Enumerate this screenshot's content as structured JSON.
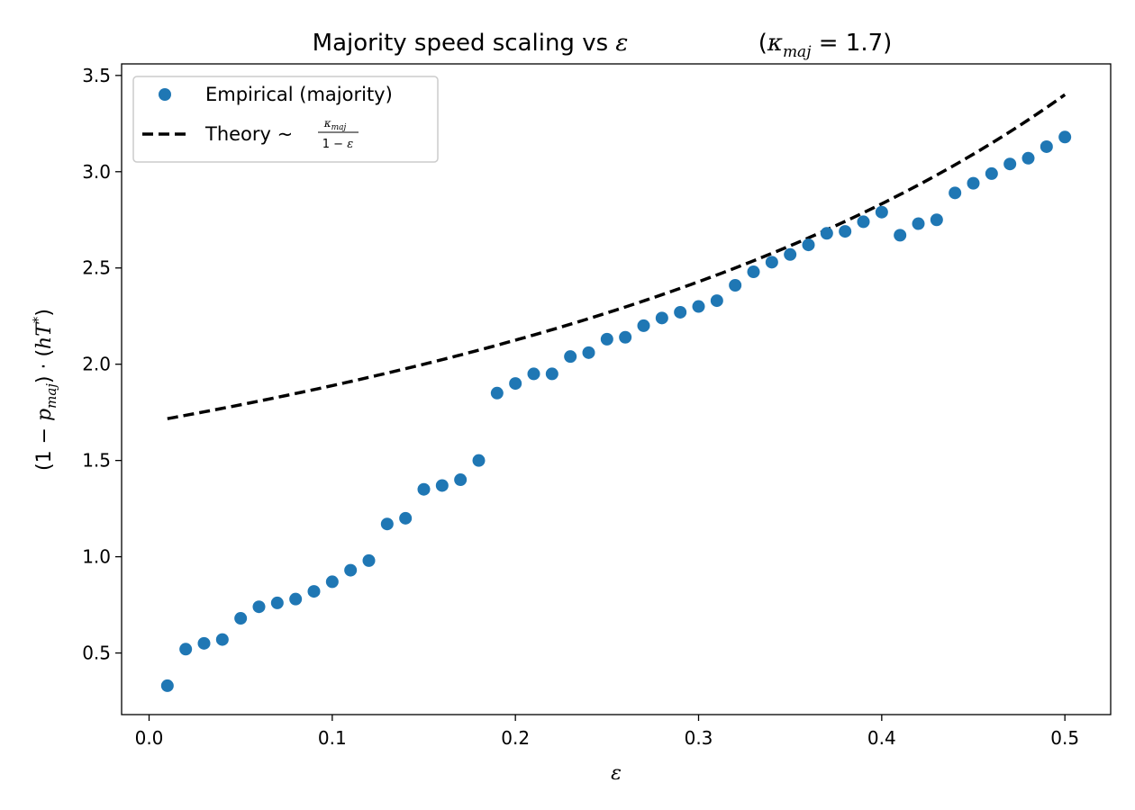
{
  "chart_data": {
    "type": "scatter",
    "title": "Majority speed scaling vs ε",
    "title_annotation": "(κmaj = 1.7)",
    "xlabel": "ε",
    "ylabel": "(1 − pmaj) · (hT*)",
    "xlim": [
      -0.015,
      0.525
    ],
    "ylim": [
      0.18,
      3.56
    ],
    "xticks": [
      0.0,
      0.1,
      0.2,
      0.3,
      0.4,
      0.5
    ],
    "xtick_labels": [
      "0.0",
      "0.1",
      "0.2",
      "0.3",
      "0.4",
      "0.5"
    ],
    "yticks": [
      0.5,
      1.0,
      1.5,
      2.0,
      2.5,
      3.0,
      3.5
    ],
    "ytick_labels": [
      "0.5",
      "1.0",
      "1.5",
      "2.0",
      "2.5",
      "3.0",
      "3.5"
    ],
    "grid": false,
    "legend_position": "upper-left",
    "series": [
      {
        "name": "Empirical (majority)",
        "kind": "scatter",
        "color": "#1f77b4",
        "x": [
          0.01,
          0.02,
          0.03,
          0.04,
          0.05,
          0.06,
          0.07,
          0.08,
          0.09,
          0.1,
          0.11,
          0.12,
          0.13,
          0.14,
          0.15,
          0.16,
          0.17,
          0.18,
          0.19,
          0.2,
          0.21,
          0.22,
          0.23,
          0.24,
          0.25,
          0.26,
          0.27,
          0.28,
          0.29,
          0.3,
          0.31,
          0.32,
          0.33,
          0.34,
          0.35,
          0.36,
          0.37,
          0.38,
          0.39,
          0.4,
          0.41,
          0.42,
          0.43,
          0.44,
          0.45,
          0.46,
          0.47,
          0.48,
          0.49,
          0.5
        ],
        "y": [
          0.33,
          0.52,
          0.55,
          0.57,
          0.68,
          0.74,
          0.76,
          0.78,
          0.82,
          0.87,
          0.93,
          0.98,
          1.17,
          1.2,
          1.35,
          1.37,
          1.4,
          1.5,
          1.85,
          1.9,
          1.95,
          1.95,
          2.04,
          2.06,
          2.13,
          2.14,
          2.2,
          2.24,
          2.27,
          2.3,
          2.33,
          2.41,
          2.48,
          2.53,
          2.57,
          2.62,
          2.68,
          2.69,
          2.74,
          2.79,
          2.67,
          2.73,
          2.75,
          2.89,
          2.94,
          2.99,
          3.04,
          3.07,
          3.13,
          3.18
        ]
      },
      {
        "name": "Theory ~ κmaj / (1 − ε)",
        "kind": "line",
        "style": "dashed",
        "color": "#000000",
        "formula": "1.7 / (1 - ε)",
        "kappa": 1.7,
        "x_range": [
          0.01,
          0.5
        ]
      }
    ]
  }
}
